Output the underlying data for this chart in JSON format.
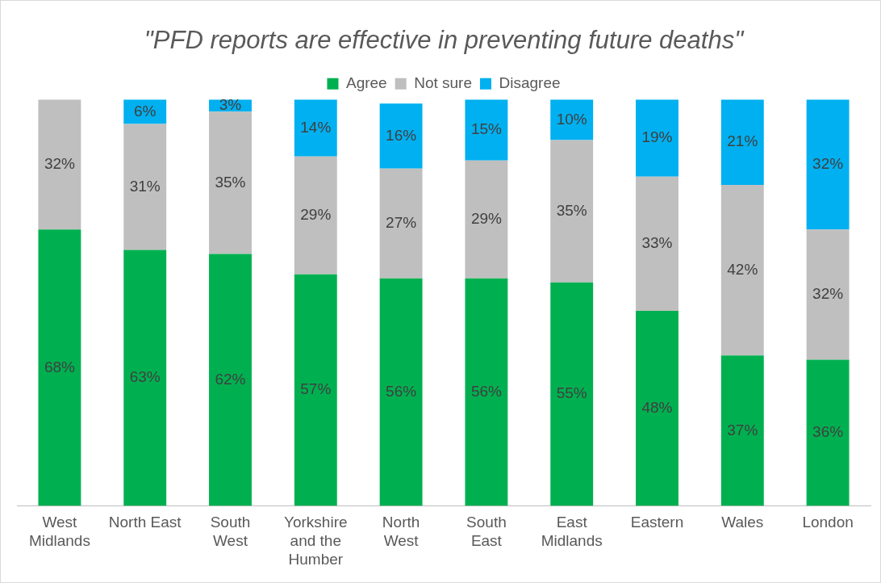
{
  "chart_data": {
    "type": "bar",
    "title": "\"PFD reports are effective in preventing future deaths\"",
    "categories": [
      "West Midlands",
      "North East",
      "South West",
      "Yorkshire and the Humber",
      "North West",
      "South East",
      "East Midlands",
      "Eastern",
      "Wales",
      "London"
    ],
    "series": [
      {
        "name": "Agree",
        "color": "#00b050",
        "values": [
          68,
          63,
          62,
          57,
          56,
          56,
          55,
          48,
          37,
          36
        ],
        "value_labels": [
          "68%",
          "63%",
          "62%",
          "57%",
          "56%",
          "56%",
          "55%",
          "48%",
          "37%",
          "36%"
        ]
      },
      {
        "name": "Not sure",
        "color": "#bfbfbf",
        "values": [
          32,
          31,
          35,
          29,
          27,
          29,
          35,
          33,
          42,
          32
        ],
        "value_labels": [
          "32%",
          "31%",
          "35%",
          "29%",
          "27%",
          "29%",
          "35%",
          "33%",
          "42%",
          "32%"
        ]
      },
      {
        "name": "Disagree",
        "color": "#00b0f0",
        "values": [
          null,
          6,
          3,
          14,
          16,
          15,
          10,
          19,
          21,
          32
        ],
        "value_labels": [
          null,
          "6%",
          "3%",
          "14%",
          "16%",
          "15%",
          "10%",
          "19%",
          "21%",
          "32%"
        ]
      }
    ],
    "stacked": true,
    "tick_labels": "x",
    "grid": false,
    "legend": "top"
  }
}
